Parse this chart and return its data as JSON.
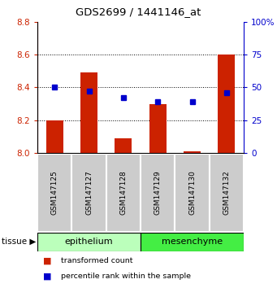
{
  "title": "GDS2699 / 1441146_at",
  "samples": [
    "GSM147125",
    "GSM147127",
    "GSM147128",
    "GSM147129",
    "GSM147130",
    "GSM147132"
  ],
  "red_values": [
    8.2,
    8.49,
    8.09,
    8.3,
    8.01,
    8.6
  ],
  "blue_values": [
    50,
    47,
    42,
    39,
    39,
    46
  ],
  "ylim_left": [
    8.0,
    8.8
  ],
  "ylim_right": [
    0,
    100
  ],
  "yticks_left": [
    8.0,
    8.2,
    8.4,
    8.6,
    8.8
  ],
  "yticks_right": [
    0,
    25,
    50,
    75,
    100
  ],
  "groups": [
    {
      "label": "epithelium",
      "start": 0,
      "end": 3,
      "color": "#bbffbb"
    },
    {
      "label": "mesenchyme",
      "start": 3,
      "end": 6,
      "color": "#44ee44"
    }
  ],
  "bar_color": "#cc2200",
  "dot_color": "#0000cc",
  "sample_box_color": "#cccccc",
  "left_axis_color": "#cc2200",
  "right_axis_color": "#0000cc",
  "tissue_label": "tissue",
  "legend_red": "transformed count",
  "legend_blue": "percentile rank within the sample",
  "grid_dotted_at": [
    8.2,
    8.4,
    8.6
  ]
}
